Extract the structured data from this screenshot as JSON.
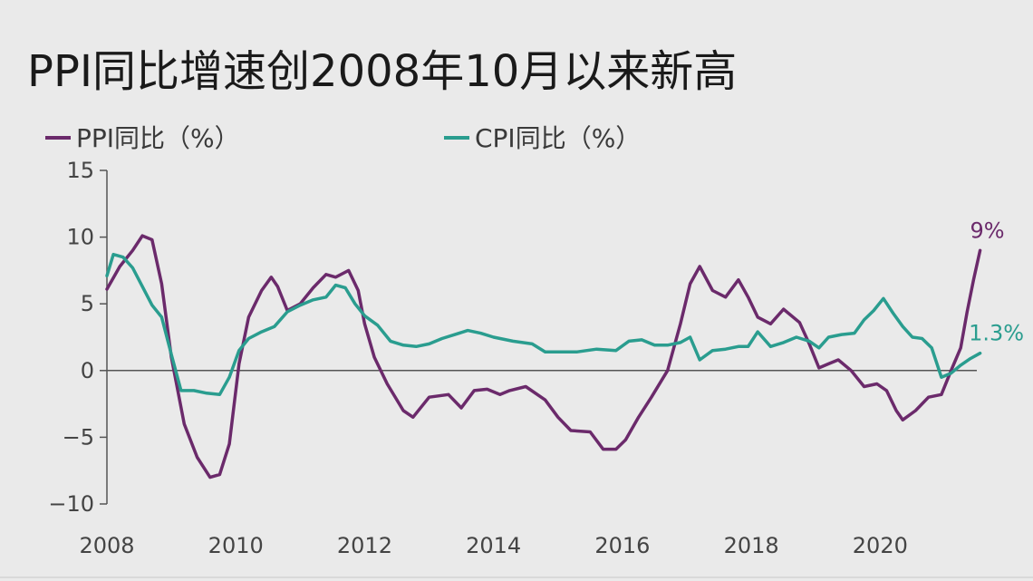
{
  "colors": {
    "background": "#eaeaea",
    "ppi": "#6b2a6b",
    "cpi": "#2a9d8f",
    "axis": "#555555",
    "text": "#1a1a1a"
  },
  "chart_data": {
    "type": "line",
    "title": "PPI同比增速创2008年10月以来新高",
    "xlabel": "",
    "ylabel": "",
    "xlim": [
      2008,
      2021.5
    ],
    "ylim": [
      -10,
      15
    ],
    "x_ticks": [
      "2008",
      "2010",
      "2012",
      "2014",
      "2016",
      "2018",
      "2020"
    ],
    "y_ticks": [
      "15",
      "10",
      "5",
      "0",
      "−5",
      "−10"
    ],
    "legend_position": "top-left",
    "grid": false,
    "series": [
      {
        "name": "PPI同比（%）",
        "color": "#6b2a6b",
        "end_label": "9%",
        "points": [
          [
            2008.0,
            6.1
          ],
          [
            2008.2,
            7.8
          ],
          [
            2008.4,
            9.0
          ],
          [
            2008.55,
            10.1
          ],
          [
            2008.7,
            9.8
          ],
          [
            2008.85,
            6.5
          ],
          [
            2009.0,
            1.0
          ],
          [
            2009.2,
            -4.0
          ],
          [
            2009.4,
            -6.5
          ],
          [
            2009.6,
            -8.0
          ],
          [
            2009.75,
            -7.8
          ],
          [
            2009.9,
            -5.5
          ],
          [
            2010.05,
            0.5
          ],
          [
            2010.2,
            4.0
          ],
          [
            2010.4,
            6.0
          ],
          [
            2010.55,
            7.0
          ],
          [
            2010.65,
            6.3
          ],
          [
            2010.8,
            4.5
          ],
          [
            2011.0,
            5.0
          ],
          [
            2011.2,
            6.2
          ],
          [
            2011.4,
            7.2
          ],
          [
            2011.55,
            7.0
          ],
          [
            2011.75,
            7.5
          ],
          [
            2011.9,
            6.0
          ],
          [
            2012.0,
            3.5
          ],
          [
            2012.15,
            1.0
          ],
          [
            2012.35,
            -1.0
          ],
          [
            2012.6,
            -3.0
          ],
          [
            2012.75,
            -3.5
          ],
          [
            2013.0,
            -2.0
          ],
          [
            2013.3,
            -1.8
          ],
          [
            2013.5,
            -2.8
          ],
          [
            2013.7,
            -1.5
          ],
          [
            2013.9,
            -1.4
          ],
          [
            2014.1,
            -1.8
          ],
          [
            2014.25,
            -1.5
          ],
          [
            2014.5,
            -1.2
          ],
          [
            2014.8,
            -2.2
          ],
          [
            2015.0,
            -3.5
          ],
          [
            2015.2,
            -4.5
          ],
          [
            2015.5,
            -4.6
          ],
          [
            2015.7,
            -5.9
          ],
          [
            2015.9,
            -5.9
          ],
          [
            2016.05,
            -5.2
          ],
          [
            2016.25,
            -3.5
          ],
          [
            2016.45,
            -2.0
          ],
          [
            2016.7,
            0.0
          ],
          [
            2016.9,
            3.5
          ],
          [
            2017.05,
            6.5
          ],
          [
            2017.2,
            7.8
          ],
          [
            2017.4,
            6.0
          ],
          [
            2017.6,
            5.5
          ],
          [
            2017.8,
            6.8
          ],
          [
            2017.95,
            5.5
          ],
          [
            2018.1,
            4.0
          ],
          [
            2018.3,
            3.5
          ],
          [
            2018.5,
            4.6
          ],
          [
            2018.75,
            3.6
          ],
          [
            2018.9,
            2.0
          ],
          [
            2019.05,
            0.2
          ],
          [
            2019.2,
            0.5
          ],
          [
            2019.35,
            0.8
          ],
          [
            2019.55,
            0.0
          ],
          [
            2019.75,
            -1.2
          ],
          [
            2019.95,
            -1.0
          ],
          [
            2020.1,
            -1.5
          ],
          [
            2020.25,
            -3.0
          ],
          [
            2020.35,
            -3.7
          ],
          [
            2020.55,
            -3.0
          ],
          [
            2020.75,
            -2.0
          ],
          [
            2020.95,
            -1.8
          ],
          [
            2021.1,
            0.0
          ],
          [
            2021.25,
            1.7
          ],
          [
            2021.35,
            4.4
          ],
          [
            2021.45,
            6.8
          ],
          [
            2021.55,
            9.0
          ]
        ]
      },
      {
        "name": "CPI同比（%）",
        "color": "#2a9d8f",
        "end_label": "1.3%",
        "points": [
          [
            2008.0,
            7.1
          ],
          [
            2008.1,
            8.7
          ],
          [
            2008.25,
            8.5
          ],
          [
            2008.4,
            7.7
          ],
          [
            2008.55,
            6.3
          ],
          [
            2008.7,
            4.9
          ],
          [
            2008.85,
            4.0
          ],
          [
            2009.0,
            1.2
          ],
          [
            2009.15,
            -1.5
          ],
          [
            2009.35,
            -1.5
          ],
          [
            2009.55,
            -1.7
          ],
          [
            2009.75,
            -1.8
          ],
          [
            2009.9,
            -0.5
          ],
          [
            2010.05,
            1.5
          ],
          [
            2010.2,
            2.4
          ],
          [
            2010.4,
            2.9
          ],
          [
            2010.6,
            3.3
          ],
          [
            2010.8,
            4.4
          ],
          [
            2011.0,
            4.9
          ],
          [
            2011.2,
            5.3
          ],
          [
            2011.4,
            5.5
          ],
          [
            2011.55,
            6.4
          ],
          [
            2011.7,
            6.2
          ],
          [
            2011.85,
            5.0
          ],
          [
            2012.0,
            4.1
          ],
          [
            2012.2,
            3.4
          ],
          [
            2012.4,
            2.2
          ],
          [
            2012.6,
            1.9
          ],
          [
            2012.8,
            1.8
          ],
          [
            2013.0,
            2.0
          ],
          [
            2013.2,
            2.4
          ],
          [
            2013.4,
            2.7
          ],
          [
            2013.6,
            3.0
          ],
          [
            2013.8,
            2.8
          ],
          [
            2014.0,
            2.5
          ],
          [
            2014.3,
            2.2
          ],
          [
            2014.6,
            2.0
          ],
          [
            2014.8,
            1.4
          ],
          [
            2015.0,
            1.4
          ],
          [
            2015.3,
            1.4
          ],
          [
            2015.6,
            1.6
          ],
          [
            2015.9,
            1.5
          ],
          [
            2016.1,
            2.2
          ],
          [
            2016.3,
            2.3
          ],
          [
            2016.5,
            1.9
          ],
          [
            2016.7,
            1.9
          ],
          [
            2016.9,
            2.1
          ],
          [
            2017.05,
            2.5
          ],
          [
            2017.2,
            0.8
          ],
          [
            2017.4,
            1.5
          ],
          [
            2017.6,
            1.6
          ],
          [
            2017.8,
            1.8
          ],
          [
            2017.95,
            1.8
          ],
          [
            2018.1,
            2.9
          ],
          [
            2018.3,
            1.8
          ],
          [
            2018.5,
            2.1
          ],
          [
            2018.7,
            2.5
          ],
          [
            2018.9,
            2.2
          ],
          [
            2019.05,
            1.7
          ],
          [
            2019.2,
            2.5
          ],
          [
            2019.4,
            2.7
          ],
          [
            2019.6,
            2.8
          ],
          [
            2019.75,
            3.8
          ],
          [
            2019.9,
            4.5
          ],
          [
            2020.05,
            5.4
          ],
          [
            2020.2,
            4.3
          ],
          [
            2020.35,
            3.3
          ],
          [
            2020.5,
            2.5
          ],
          [
            2020.65,
            2.4
          ],
          [
            2020.8,
            1.7
          ],
          [
            2020.95,
            -0.5
          ],
          [
            2021.1,
            -0.2
          ],
          [
            2021.25,
            0.4
          ],
          [
            2021.4,
            0.9
          ],
          [
            2021.55,
            1.3
          ]
        ]
      }
    ]
  }
}
